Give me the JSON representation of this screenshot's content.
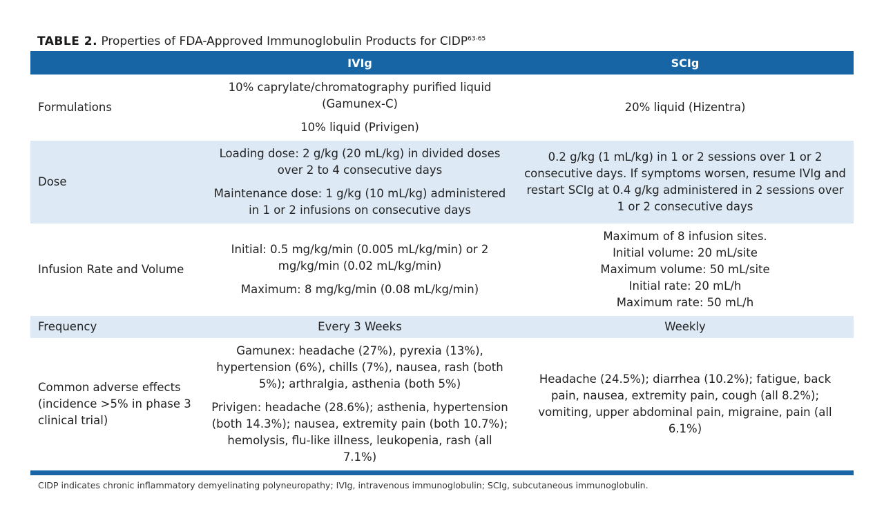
{
  "title": {
    "label": "TABLE 2.",
    "text": "Properties of FDA-Approved Immunoglobulin Products for CIDP",
    "superscript": "63-65"
  },
  "header": {
    "col1": "",
    "col2": "IVIg",
    "col3": "SCIg"
  },
  "rows": {
    "formulations": {
      "label": "Formulations",
      "ivig": [
        "10% caprylate/chromatography purified liquid (Gamunex-C)",
        "10% liquid (Privigen)"
      ],
      "scig": [
        "20% liquid (Hizentra)"
      ]
    },
    "dose": {
      "label": "Dose",
      "ivig": [
        "Loading dose: 2 g/kg (20 mL/kg) in divided doses over 2 to 4 consecutive days",
        "Maintenance dose: 1 g/kg (10 mL/kg) administered in 1 or 2 infusions on consecutive days"
      ],
      "scig": [
        "0.2 g/kg (1 mL/kg) in 1 or 2 sessions over 1 or 2 consecutive days. If symptoms worsen, resume IVIg and restart SCIg at 0.4 g/kg administered in 2 sessions over 1 or 2 consecutive days"
      ]
    },
    "infusion": {
      "label": "Infusion Rate and Volume",
      "ivig": [
        "Initial: 0.5 mg/kg/min (0.005 mL/kg/min) or 2 mg/kg/min (0.02 mL/kg/min)",
        "Maximum: 8 mg/kg/min (0.08 mL/kg/min)"
      ],
      "scig": [
        "Maximum of 8 infusion sites.",
        "Initial volume: 20 mL/site",
        "Maximum volume: 50 mL/site",
        "Initial rate: 20 mL/h",
        "Maximum rate: 50 mL/h"
      ]
    },
    "frequency": {
      "label": "Frequency",
      "ivig": [
        "Every 3 Weeks"
      ],
      "scig": [
        "Weekly"
      ]
    },
    "adverse": {
      "label": "Common adverse effects (incidence >5% in phase 3 clinical trial)",
      "ivig": [
        "Gamunex: headache (27%), pyrexia (13%), hypertension (6%), chills (7%), nausea, rash (both 5%); arthralgia, asthenia (both 5%)",
        "Privigen: headache (28.6%); asthenia, hypertension (both 14.3%); nausea, extremity pain (both 10.7%); hemolysis, flu-like illness, leukopenia, rash (all 7.1%)"
      ],
      "scig": [
        "Headache (24.5%); diarrhea (10.2%); fatigue, back pain, nausea, extremity pain, cough (all 8.2%); vomiting, upper abdominal pain, migraine, pain (all 6.1%)"
      ]
    }
  },
  "footnote": "CIDP indicates chronic inflammatory demyelinating polyneuropathy; IVIg, intravenous immunoglobulin; SCIg, subcutaneous immunoglobulin.",
  "colors": {
    "header_bg": "#1865a5",
    "row_shade": "#dde9f5"
  }
}
